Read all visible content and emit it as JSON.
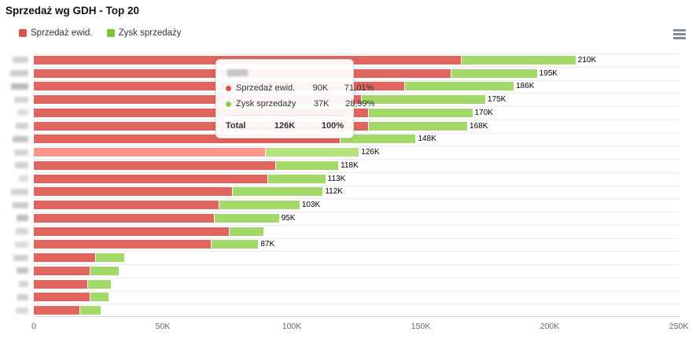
{
  "title": "Sprzedaż wg GDH - Top 20",
  "legend": {
    "items": [
      {
        "label": "Sprzedaż ewid.",
        "color": "#da544e"
      },
      {
        "label": "Zysk sprzedaży",
        "color": "#7cc63c"
      }
    ]
  },
  "menu": {
    "icon": "hamburger-icon"
  },
  "chart_data": {
    "type": "bar",
    "orientation": "horizontal",
    "stacked": true,
    "title": "Sprzedaż wg GDH - Top 20",
    "categories_redacted": true,
    "categories": [
      "",
      "",
      "",
      "",
      "",
      "",
      "",
      "",
      "",
      "",
      "",
      "",
      "",
      "",
      "",
      "",
      "",
      "",
      "",
      ""
    ],
    "values_unit": "thousands",
    "series": [
      {
        "name": "Sprzedaż ewid.",
        "color": "#e0655f",
        "hover_color": "#fe948c",
        "values": [
          166,
          162,
          144,
          127,
          130,
          130,
          119,
          90,
          94,
          91,
          77,
          72,
          70,
          76,
          69,
          24,
          22,
          21,
          22,
          18
        ]
      },
      {
        "name": "Zysk sprzedaży",
        "color": "#a3d968",
        "hover_color": "#b6e27e",
        "values": [
          44,
          33,
          42,
          48,
          40,
          38,
          29,
          36,
          24,
          22,
          35,
          31,
          25,
          13,
          18,
          11,
          11,
          9,
          7,
          8
        ]
      }
    ],
    "total_labels": [
      "210K",
      "195K",
      "186K",
      "175K",
      "170K",
      "168K",
      "148K",
      "126K",
      "118K",
      "113K",
      "112K",
      "103K",
      "95K",
      "",
      "87K",
      "",
      "",
      "",
      "",
      ""
    ],
    "hovered_row_index": 7,
    "x_axis": {
      "ticks": [
        "0",
        "50K",
        "100K",
        "150K",
        "200K",
        "250K"
      ],
      "min": 0,
      "max": 250,
      "grid": "row-separators"
    }
  },
  "tooltip": {
    "header_redacted": true,
    "rows": [
      {
        "name": "Sprzedaż ewid.",
        "value": "90K",
        "pct": "71,01%",
        "dot_color": "#e0514b"
      },
      {
        "name": "Zysk sprzedaży",
        "value": "37K",
        "pct": "28,99%",
        "dot_color": "#8ccf4a"
      }
    ],
    "total": {
      "label": "Total",
      "value": "126K",
      "pct": "100%"
    }
  }
}
